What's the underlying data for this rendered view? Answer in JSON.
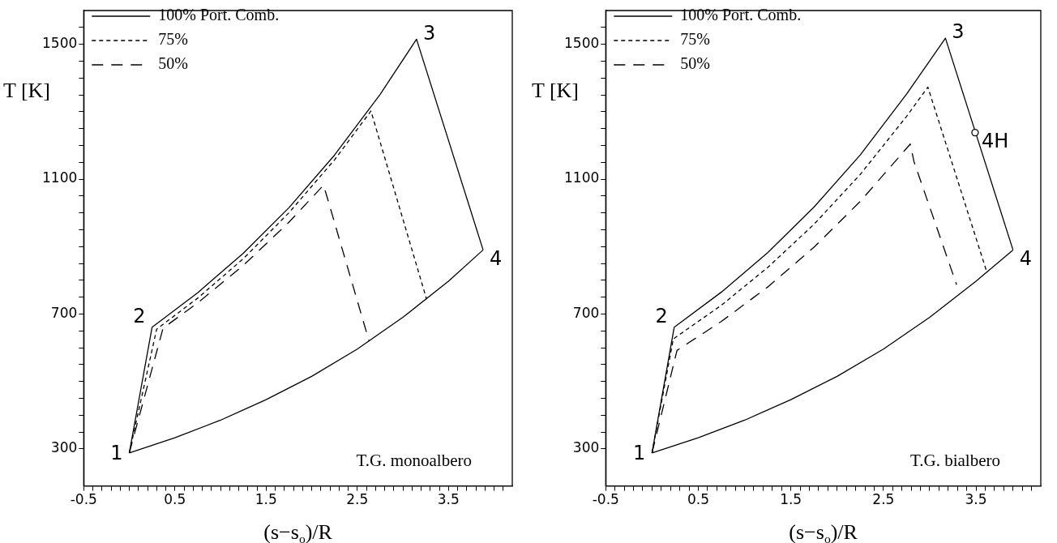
{
  "chart_data": [
    {
      "type": "line",
      "xlabel": "(s−s$_{o}$)/R",
      "ylabel": "T [K]",
      "xlim": [
        -0.5,
        4.2
      ],
      "ylim": [
        190,
        1600
      ],
      "xticks": [
        -0.5,
        {
          "value": -0.4,
          "label": null
        },
        {
          "value": -0.3,
          "label": null
        },
        {
          "value": -0.2,
          "label": null
        },
        {
          "value": -0.1,
          "label": null
        },
        {
          "value": 0,
          "label": null
        },
        {
          "value": 0.1,
          "label": null
        },
        {
          "value": 0.2,
          "label": null
        },
        {
          "value": 0.3,
          "label": null
        },
        {
          "value": 0.4,
          "label": null
        },
        0.5,
        {
          "value": 0.6,
          "label": null
        },
        {
          "value": 0.7,
          "label": null
        },
        {
          "value": 0.8,
          "label": null
        },
        {
          "value": 0.9,
          "label": null
        },
        {
          "value": 1,
          "label": null
        },
        {
          "value": 1.1,
          "label": null
        },
        {
          "value": 1.2,
          "label": null
        },
        {
          "value": 1.3,
          "label": null
        },
        {
          "value": 1.4,
          "label": null
        },
        1.5,
        {
          "value": 1.6,
          "label": null
        },
        {
          "value": 1.7,
          "label": null
        },
        {
          "value": 1.8,
          "label": null
        },
        {
          "value": 1.9,
          "label": null
        },
        {
          "value": 2,
          "label": null
        },
        {
          "value": 2.1,
          "label": null
        },
        {
          "value": 2.2,
          "label": null
        },
        {
          "value": 2.3,
          "label": null
        },
        {
          "value": 2.4,
          "label": null
        },
        2.5,
        {
          "value": 2.6,
          "label": null
        },
        {
          "value": 2.7,
          "label": null
        },
        {
          "value": 2.8,
          "label": null
        },
        {
          "value": 2.9,
          "label": null
        },
        {
          "value": 3,
          "label": null
        },
        {
          "value": 3.1,
          "label": null
        },
        {
          "value": 3.2,
          "label": null
        },
        {
          "value": 3.3,
          "label": null
        },
        {
          "value": 3.4,
          "label": null
        },
        3.5,
        {
          "value": 3.6,
          "label": null
        },
        {
          "value": 3.7,
          "label": null
        },
        {
          "value": 3.8,
          "label": null
        },
        {
          "value": 3.9,
          "label": null
        },
        {
          "value": 4,
          "label": null
        },
        {
          "value": 4.1,
          "label": null
        }
      ],
      "yticks": [
        300,
        {
          "value": 350,
          "label": null
        },
        {
          "value": 400,
          "label": null
        },
        {
          "value": 450,
          "label": null
        },
        {
          "value": 500,
          "label": null
        },
        {
          "value": 550,
          "label": null
        },
        {
          "value": 600,
          "label": null
        },
        {
          "value": 650,
          "label": null
        },
        700,
        {
          "value": 750,
          "label": null
        },
        {
          "value": 800,
          "label": null
        },
        {
          "value": 850,
          "label": null
        },
        {
          "value": 900,
          "label": null
        },
        {
          "value": 950,
          "label": null
        },
        {
          "value": 1000,
          "label": null
        },
        {
          "value": 1050,
          "label": null
        },
        1100,
        {
          "value": 1150,
          "label": null
        },
        {
          "value": 1200,
          "label": null
        },
        {
          "value": 1250,
          "label": null
        },
        {
          "value": 1300,
          "label": null
        },
        {
          "value": 1350,
          "label": null
        },
        {
          "value": 1400,
          "label": null
        },
        {
          "value": 1450,
          "label": null
        },
        1500,
        {
          "value": 1550,
          "label": null
        }
      ],
      "grid": false,
      "legend": "top left",
      "marker": "none",
      "series": [
        {
          "name": "100% Port. Comb.",
          "color": "#000000",
          "line_style": "solid",
          "x": [
            0,
            0.25,
            0.75,
            1.25,
            1.75,
            2.25,
            2.75,
            3.15,
            3.88
          ],
          "values": [
            288,
            661,
            763,
            880,
            1015,
            1171,
            1351,
            1515,
            890
          ]
        },
        {
          "color": "#000000",
          "line_style": "solid",
          "x": [
            0,
            0.5,
            1.0,
            1.5,
            2.0,
            2.5,
            3.0,
            3.5,
            3.88
          ],
          "values": [
            288,
            333,
            385,
            446,
            515,
            596,
            690,
            797,
            890
          ]
        },
        {
          "name": "75%",
          "color": "#000000",
          "line_style": "dotted",
          "x": [
            0,
            0.3,
            0.75,
            1.25,
            1.75,
            2.25,
            2.65,
            3.26
          ],
          "values": [
            288,
            655,
            747,
            864,
            1000,
            1157,
            1302,
            744
          ]
        },
        {
          "name": "50%",
          "color": "#000000",
          "line_style": "dashed",
          "x": [
            0,
            0.37,
            0.75,
            1.25,
            1.75,
            2.13,
            2.17,
            2.63
          ],
          "values": [
            288,
            658,
            733,
            844,
            972,
            1082,
            1046,
            619
          ]
        }
      ],
      "annotations": [
        {
          "text": "1",
          "x": 0,
          "y": 288
        },
        {
          "text": "2",
          "x": 0.25,
          "y": 661
        },
        {
          "text": "3",
          "x": 3.15,
          "y": 1515
        },
        {
          "text": "4",
          "x": 3.88,
          "y": 890
        },
        "T.G. monoalbero"
      ]
    },
    {
      "type": "line",
      "xlabel": "(s−s$_{o}$)/R",
      "ylabel": "T [K]",
      "xlim": [
        -0.5,
        4.2
      ],
      "ylim": [
        190,
        1600
      ],
      "xticks": [
        -0.5,
        {
          "value": -0.4,
          "label": null
        },
        {
          "value": -0.3,
          "label": null
        },
        {
          "value": -0.2,
          "label": null
        },
        {
          "value": -0.1,
          "label": null
        },
        {
          "value": 0,
          "label": null
        },
        {
          "value": 0.1,
          "label": null
        },
        {
          "value": 0.2,
          "label": null
        },
        {
          "value": 0.3,
          "label": null
        },
        {
          "value": 0.4,
          "label": null
        },
        0.5,
        {
          "value": 0.6,
          "label": null
        },
        {
          "value": 0.7,
          "label": null
        },
        {
          "value": 0.8,
          "label": null
        },
        {
          "value": 0.9,
          "label": null
        },
        {
          "value": 1,
          "label": null
        },
        {
          "value": 1.1,
          "label": null
        },
        {
          "value": 1.2,
          "label": null
        },
        {
          "value": 1.3,
          "label": null
        },
        {
          "value": 1.4,
          "label": null
        },
        1.5,
        {
          "value": 1.6,
          "label": null
        },
        {
          "value": 1.7,
          "label": null
        },
        {
          "value": 1.8,
          "label": null
        },
        {
          "value": 1.9,
          "label": null
        },
        {
          "value": 2,
          "label": null
        },
        {
          "value": 2.1,
          "label": null
        },
        {
          "value": 2.2,
          "label": null
        },
        {
          "value": 2.3,
          "label": null
        },
        {
          "value": 2.4,
          "label": null
        },
        2.5,
        {
          "value": 2.6,
          "label": null
        },
        {
          "value": 2.7,
          "label": null
        },
        {
          "value": 2.8,
          "label": null
        },
        {
          "value": 2.9,
          "label": null
        },
        {
          "value": 3,
          "label": null
        },
        {
          "value": 3.1,
          "label": null
        },
        {
          "value": 3.2,
          "label": null
        },
        {
          "value": 3.3,
          "label": null
        },
        {
          "value": 3.4,
          "label": null
        },
        3.5,
        {
          "value": 3.6,
          "label": null
        },
        {
          "value": 3.7,
          "label": null
        },
        {
          "value": 3.8,
          "label": null
        },
        {
          "value": 3.9,
          "label": null
        },
        {
          "value": 4,
          "label": null
        },
        {
          "value": 4.1,
          "label": null
        }
      ],
      "yticks": [
        300,
        {
          "value": 350,
          "label": null
        },
        {
          "value": 400,
          "label": null
        },
        {
          "value": 450,
          "label": null
        },
        {
          "value": 500,
          "label": null
        },
        {
          "value": 550,
          "label": null
        },
        {
          "value": 600,
          "label": null
        },
        {
          "value": 650,
          "label": null
        },
        700,
        {
          "value": 750,
          "label": null
        },
        {
          "value": 800,
          "label": null
        },
        {
          "value": 850,
          "label": null
        },
        {
          "value": 900,
          "label": null
        },
        {
          "value": 950,
          "label": null
        },
        {
          "value": 1000,
          "label": null
        },
        {
          "value": 1050,
          "label": null
        },
        1100,
        {
          "value": 1150,
          "label": null
        },
        {
          "value": 1200,
          "label": null
        },
        {
          "value": 1250,
          "label": null
        },
        {
          "value": 1300,
          "label": null
        },
        {
          "value": 1350,
          "label": null
        },
        {
          "value": 1400,
          "label": null
        },
        {
          "value": 1450,
          "label": null
        },
        1500,
        {
          "value": 1550,
          "label": null
        }
      ],
      "grid": false,
      "legend": "top left",
      "marker": "none",
      "series": [
        {
          "name": "100% Port. Comb.",
          "color": "#000000",
          "line_style": "solid",
          "x": [
            0,
            0.24,
            0.75,
            1.25,
            1.75,
            2.25,
            2.75,
            3.17,
            3.9
          ],
          "values": [
            288,
            661,
            765,
            882,
            1017,
            1172,
            1352,
            1518,
            890
          ]
        },
        {
          "color": "#000000",
          "line_style": "solid",
          "x": [
            0,
            0.5,
            1.0,
            1.5,
            2.0,
            2.5,
            3.0,
            3.5,
            3.9
          ],
          "values": [
            288,
            333,
            385,
            446,
            515,
            596,
            690,
            797,
            890
          ]
        },
        {
          "name": "75%",
          "color": "#000000",
          "line_style": "dotted",
          "x": [
            0,
            0.23,
            0.75,
            1.25,
            1.75,
            2.25,
            2.75,
            2.98,
            3.62
          ],
          "values": [
            288,
            626,
            726,
            838,
            966,
            1114,
            1286,
            1373,
            822
          ]
        },
        {
          "name": "50%",
          "color": "#000000",
          "line_style": "dashed",
          "x": [
            0,
            0.27,
            0.75,
            1.25,
            1.75,
            2.25,
            2.79,
            2.83,
            3.29
          ],
          "values": [
            288,
            592,
            678,
            780,
            898,
            1034,
            1204,
            1152,
            787
          ]
        },
        {
          "type": "scatter",
          "color": "#000000",
          "marker": "circle",
          "x": [
            3.49
          ],
          "values": [
            1238
          ]
        }
      ],
      "annotations": [
        {
          "text": "1",
          "x": 0,
          "y": 288
        },
        {
          "text": "2",
          "x": 0.24,
          "y": 661
        },
        {
          "text": "3",
          "x": 3.17,
          "y": 1518
        },
        {
          "text": "4",
          "x": 3.9,
          "y": 890
        },
        {
          "text": "4H",
          "x": 3.49,
          "y": 1238
        },
        "T.G. bialbero"
      ]
    }
  ]
}
